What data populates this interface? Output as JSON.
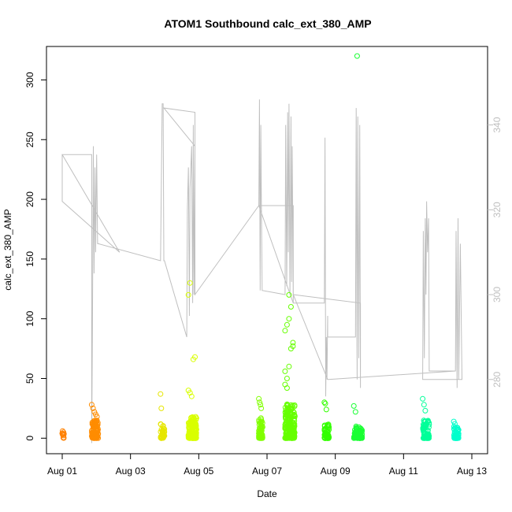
{
  "chart_data": {
    "type": "scatter",
    "title": "ATOM1 Southbound calc_ext_380_AMP",
    "xlabel": "Date",
    "ylabel": "calc_ext_380_AMP",
    "x_ticks": [
      "Aug 01",
      "Aug 03",
      "Aug 05",
      "Aug 07",
      "Aug 09",
      "Aug 11",
      "Aug 13"
    ],
    "xlim_days": [
      0.0,
      12.5
    ],
    "ylim": [
      -13,
      328
    ],
    "y_ticks": [
      0,
      50,
      100,
      150,
      200,
      250,
      300
    ],
    "y2_ticks": [
      280,
      300,
      320,
      340
    ],
    "y2_lim": [
      262.5,
      358.5
    ],
    "grid": false,
    "legend": "none",
    "point_clusters": [
      {
        "x": 0.0,
        "width": 0.06,
        "color": "#ff8000",
        "count": 10,
        "base_max": 5,
        "outliers": [
          4,
          6,
          3
        ]
      },
      {
        "x": 0.9,
        "width": 0.2,
        "color": "#ff8c00",
        "count": 120,
        "base_max": 15,
        "outliers": [
          28,
          25,
          22,
          20,
          18
        ]
      },
      {
        "x": 3.0,
        "width": 0.12,
        "color": "#e6e600",
        "count": 40,
        "base_max": 12,
        "outliers": [
          37,
          25
        ]
      },
      {
        "x": 3.85,
        "width": 0.25,
        "color": "#d9ff00",
        "count": 160,
        "base_max": 18,
        "outliers": [
          40,
          38,
          35,
          66,
          68,
          120,
          130
        ]
      },
      {
        "x": 6.0,
        "width": 0.12,
        "color": "#80ff00",
        "count": 60,
        "base_max": 18,
        "outliers": [
          33,
          30,
          28,
          25
        ]
      },
      {
        "x": 6.8,
        "width": 0.3,
        "color": "#66ff00",
        "count": 200,
        "base_max": 30,
        "outliers": [
          45,
          50,
          60,
          75,
          80,
          90,
          95,
          100,
          110,
          77,
          56,
          42,
          120
        ]
      },
      {
        "x": 8.0,
        "width": 0.15,
        "color": "#33ff00",
        "count": 60,
        "base_max": 12,
        "outliers": [
          30,
          29,
          24
        ]
      },
      {
        "x": 8.9,
        "width": 0.25,
        "color": "#1aff33",
        "count": 100,
        "base_max": 10,
        "outliers": [
          27,
          22,
          320
        ]
      },
      {
        "x": 11.0,
        "width": 0.2,
        "color": "#00ff99",
        "count": 80,
        "base_max": 15,
        "outliers": [
          33,
          28,
          23
        ]
      },
      {
        "x": 11.95,
        "width": 0.15,
        "color": "#00ffcc",
        "count": 50,
        "base_max": 10,
        "outliers": [
          14,
          12
        ]
      }
    ],
    "secondary_series": {
      "name": "",
      "color": "#bfbfbf",
      "points": [
        [
          0.0,
          333
        ],
        [
          0.0,
          322
        ],
        [
          1.75,
          310
        ],
        [
          0.0,
          333
        ],
        [
          0.9,
          333
        ],
        [
          0.9,
          265
        ],
        [
          0.92,
          290
        ],
        [
          0.95,
          335
        ],
        [
          0.97,
          305
        ],
        [
          1.0,
          330
        ],
        [
          1.02,
          310
        ],
        [
          1.05,
          333
        ],
        [
          1.08,
          312
        ],
        [
          1.1,
          312
        ],
        [
          3.0,
          308
        ],
        [
          3.05,
          345
        ],
        [
          3.08,
          345
        ],
        [
          3.1,
          308
        ],
        [
          3.12,
          308
        ],
        [
          3.8,
          290
        ],
        [
          3.82,
          320
        ],
        [
          3.85,
          330
        ],
        [
          3.88,
          295
        ],
        [
          3.9,
          325
        ],
        [
          3.95,
          335
        ],
        [
          3.98,
          298
        ],
        [
          4.0,
          340
        ],
        [
          4.02,
          300
        ],
        [
          4.05,
          335
        ],
        [
          3.1,
          344
        ],
        [
          4.05,
          343
        ],
        [
          4.05,
          300
        ],
        [
          6.0,
          321
        ],
        [
          6.02,
          346
        ],
        [
          6.04,
          301
        ],
        [
          6.06,
          340
        ],
        [
          6.08,
          320
        ],
        [
          6.1,
          301
        ],
        [
          6.1,
          301
        ],
        [
          6.8,
          300
        ],
        [
          6.82,
          340
        ],
        [
          6.85,
          302
        ],
        [
          6.88,
          343
        ],
        [
          6.9,
          310
        ],
        [
          6.92,
          345
        ],
        [
          6.95,
          300
        ],
        [
          6.98,
          342
        ],
        [
          7.0,
          303
        ],
        [
          7.02,
          335
        ],
        [
          7.05,
          298
        ],
        [
          6.0,
          321
        ],
        [
          7.05,
          321
        ],
        [
          7.05,
          298
        ],
        [
          8.0,
          298
        ],
        [
          8.02,
          337
        ],
        [
          8.04,
          276
        ],
        [
          8.06,
          290
        ],
        [
          8.08,
          280
        ],
        [
          8.1,
          295
        ],
        [
          8.1,
          290
        ],
        [
          8.95,
          290
        ],
        [
          8.97,
          344
        ],
        [
          9.0,
          280
        ],
        [
          9.02,
          342
        ],
        [
          9.05,
          285
        ],
        [
          9.08,
          340
        ],
        [
          9.1,
          278
        ],
        [
          9.1,
          298
        ],
        [
          7.05,
          300
        ],
        [
          8.1,
          280
        ],
        [
          8.12,
          280
        ],
        [
          12.0,
          282
        ],
        [
          12.02,
          315
        ],
        [
          12.05,
          278
        ],
        [
          12.08,
          318
        ],
        [
          12.1,
          280
        ],
        [
          12.15,
          312
        ],
        [
          12.2,
          280
        ],
        [
          11.0,
          280
        ],
        [
          11.02,
          315
        ],
        [
          11.05,
          285
        ],
        [
          11.08,
          318
        ],
        [
          11.1,
          300
        ],
        [
          11.12,
          322
        ],
        [
          11.15,
          310
        ],
        [
          11.18,
          318
        ],
        [
          11.2,
          282
        ],
        [
          12.0,
          282
        ]
      ]
    }
  }
}
